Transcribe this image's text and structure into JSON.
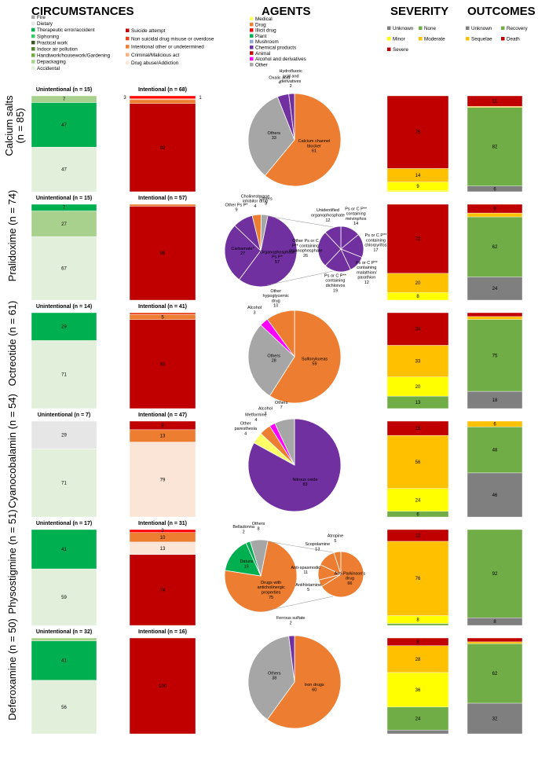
{
  "headers": {
    "circumstances": "CIRCUMSTANCES",
    "agents": "AGENTS",
    "severity": "SEVERITY",
    "outcomes": "OUTCOMES"
  },
  "colors": {
    "Fire": "#a6a6a6",
    "Dietary": "#e6e6e6",
    "Therapeutic error/accident": "#00b050",
    "Siphoning": "#33cc66",
    "Practical work": "#385723",
    "Indoor air pollution": "#548235",
    "Handiwork/housework/Gardening": "#70ad47",
    "Depackaging": "#a9d18e",
    "Accidental": "#e2efda",
    "Suicide attempt": "#c00000",
    "Non suicidal drug misuse or overdose": "#e8401c",
    "Intentional other or undetermined": "#ed7d31",
    "Criminal/Malicious act": "#f4b183",
    "Drug abuse/Addiction": "#fbe5d6",
    "Medical": "#ffff66",
    "Drug": "#ed7d31",
    "Illicit drug": "#ff0000",
    "Plant": "#00b050",
    "Mushroom": "#8faadc",
    "Chemical products": "#7030a0",
    "Animal": "#c00000",
    "Alcohol and derivatives": "#ff00ff",
    "Other": "#a6a6a6",
    "Unknown": "#7f7f7f",
    "None": "#70ad47",
    "Minor": "#ffff00",
    "Moderate": "#ffc000",
    "Severe": "#c00000",
    "Recovery": "#70ad47",
    "Sequelae": "#ffc000",
    "Death": "#c00000"
  },
  "legends": {
    "circumstances_left": [
      "Fire",
      "Dietary",
      "Therapeutic error/accident",
      "Siphoning",
      "Practical work",
      "Indoor air pollution",
      "Handiwork/housework/Gardening",
      "Depackaging",
      "Accidental"
    ],
    "circumstances_right": [
      "Suicide attempt",
      "Non suicidal drug misuse or overdose",
      "Intentional other or undetermined",
      "Criminal/Malicious act",
      "Drug abuse/Addiction"
    ],
    "agents": [
      "Medical",
      "Drug",
      "Illicit drug",
      "Plant",
      "Mushroom",
      "Chemical products",
      "Animal",
      "Alcohol and derivatives",
      "Other"
    ],
    "severity": [
      "Unknown",
      "None",
      "Minor",
      "Moderate",
      "Severe"
    ],
    "outcomes": [
      "Unknown",
      "Recovery",
      "Sequelae",
      "Death"
    ]
  },
  "chart_data": [
    {
      "type": "bar",
      "row": "Calcium salts\n(n = 85)",
      "unintentional": {
        "label": "Unintentional (n = 15)",
        "series": [
          {
            "name": "Accidental",
            "value": 47
          },
          {
            "name": "Therapeutic error/accident",
            "value": 47
          },
          {
            "name": "Depackaging",
            "value": 7
          }
        ]
      },
      "intentional": {
        "label": "Intentional (n = 68)",
        "series": [
          {
            "name": "Suicide attempt",
            "value": 92
          },
          {
            "name": "Intentional other or undetermined",
            "value": 4
          },
          {
            "name": "Criminal/Malicious act",
            "value": 1
          },
          {
            "name": "Illicit drug",
            "value": 3
          }
        ],
        "edge_labels": [
          {
            "text": "3",
            "side": "left"
          },
          {
            "text": "1",
            "side": "right"
          }
        ]
      },
      "agents": {
        "type": "pie",
        "slices": [
          {
            "name": "Calcium channel blocker",
            "value": 61,
            "color": "Drug"
          },
          {
            "name": "Others",
            "value": 33,
            "color": "Other"
          },
          {
            "name": "Oxalic acid",
            "value": 4,
            "color": "Chemical products"
          },
          {
            "name": "Hydrofluoric acid and derivatives",
            "value": 2,
            "color": "Chemical products"
          }
        ]
      },
      "severity": [
        {
          "name": "Minor",
          "value": 1,
          "label": "1"
        },
        {
          "name": "Minor",
          "value": 9,
          "label": "9"
        },
        {
          "name": "Moderate",
          "value": 14,
          "label": "14"
        },
        {
          "name": "Severe",
          "value": 75,
          "label": "75"
        }
      ],
      "outcomes": [
        {
          "name": "Unknown",
          "value": 6,
          "label": "6"
        },
        {
          "name": "Recovery",
          "value": 82,
          "label": "82"
        },
        {
          "name": "Sequelae",
          "value": 1,
          "label": "1"
        },
        {
          "name": "Death",
          "value": 11,
          "label": "11"
        }
      ]
    },
    {
      "type": "bar",
      "row": "Pralidoxime (n = 74)",
      "unintentional": {
        "label": "Unintentional (n = 15)",
        "series": [
          {
            "name": "Accidental",
            "value": 67
          },
          {
            "name": "Depackaging",
            "value": 27
          },
          {
            "name": "Therapeutic error/accident",
            "value": 7
          }
        ]
      },
      "intentional": {
        "label": "Intentional (n = 57)",
        "series": [
          {
            "name": "Suicide attempt",
            "value": 98
          },
          {
            "name": "Intentional other or undetermined",
            "value": 2
          }
        ]
      },
      "agents": {
        "type": "pie",
        "slices": [
          {
            "name": "Organophosphate Ps P*",
            "value": 57,
            "color": "Chemical products"
          },
          {
            "name": "Carbamate*",
            "value": 27,
            "color": "Chemical products"
          },
          {
            "name": "Other Ps P*",
            "value": 9,
            "color": "Chemical products"
          },
          {
            "name": "Cholinesterase inhibitor drug",
            "value": 4,
            "color": "Drug"
          },
          {
            "name": "Others",
            "value": 3,
            "color": "Other"
          }
        ],
        "subpie": [
          {
            "name": "Ps or C P** containing mévinphos",
            "value": 14
          },
          {
            "name": "Ps or C P** containing chlorpyrifos",
            "value": 17
          },
          {
            "name": "Ps or C P** containing malathion/ parathion",
            "value": 12
          },
          {
            "name": "Ps or C P** containing dichlorvos",
            "value": 19
          },
          {
            "name": "Other Ps or C P** containing organophosphate",
            "value": 26
          },
          {
            "name": "Unidentified organophosphate",
            "value": 12
          }
        ]
      },
      "severity": [
        {
          "name": "Minor",
          "value": 8,
          "label": "8"
        },
        {
          "name": "Moderate",
          "value": 20,
          "label": "20"
        },
        {
          "name": "Severe",
          "value": 72,
          "label": "72"
        }
      ],
      "outcomes": [
        {
          "name": "Unknown",
          "value": 24,
          "label": "24"
        },
        {
          "name": "Recovery",
          "value": 62,
          "label": "62"
        },
        {
          "name": "Sequelae",
          "value": 4,
          "label": "4"
        },
        {
          "name": "Death",
          "value": 9,
          "label": "9"
        }
      ]
    },
    {
      "type": "bar",
      "row": "Octreotide (n = 61)",
      "unintentional": {
        "label": "Unintentional (n = 14)",
        "series": [
          {
            "name": "Accidental",
            "value": 71
          },
          {
            "name": "Therapeutic error/accident",
            "value": 29
          }
        ]
      },
      "intentional": {
        "label": "Intentional (n = 41)",
        "series": [
          {
            "name": "Suicide attempt",
            "value": 93
          },
          {
            "name": "Intentional other or undetermined",
            "value": 5
          },
          {
            "name": "Non suicidal drug misuse or overdose",
            "value": 2
          }
        ]
      },
      "agents": {
        "type": "pie",
        "slices": [
          {
            "name": "Sulfonylureas",
            "value": 59,
            "color": "Drug"
          },
          {
            "name": "Others",
            "value": 28,
            "color": "Other"
          },
          {
            "name": "Alcohol",
            "value": 3,
            "color": "Alcohol and derivatives"
          },
          {
            "name": "Other hypoglycemic drug",
            "value": 10,
            "color": "Drug"
          }
        ]
      },
      "severity": [
        {
          "name": "None",
          "value": 13,
          "label": "13"
        },
        {
          "name": "Minor",
          "value": 20,
          "label": "20"
        },
        {
          "name": "Moderate",
          "value": 33,
          "label": "33"
        },
        {
          "name": "Severe",
          "value": 34,
          "label": "34"
        }
      ],
      "outcomes": [
        {
          "name": "Unknown",
          "value": 18,
          "label": "18"
        },
        {
          "name": "Recovery",
          "value": 75,
          "label": "75"
        },
        {
          "name": "Sequelae",
          "value": 3,
          "label": "3"
        },
        {
          "name": "Death",
          "value": 4,
          "label": "4"
        }
      ]
    },
    {
      "type": "bar",
      "row": "Cyanocobalamin (n = 54)",
      "unintentional": {
        "label": "Unintentional (n = 7)",
        "series": [
          {
            "name": "Accidental",
            "value": 71
          },
          {
            "name": "Dietary",
            "value": 29
          }
        ]
      },
      "intentional": {
        "label": "Intentional (n = 47)",
        "series": [
          {
            "name": "Drug abuse/Addiction",
            "value": 79
          },
          {
            "name": "Intentional other or undetermined",
            "value": 13
          },
          {
            "name": "Suicide attempt",
            "value": 9
          }
        ]
      },
      "agents": {
        "type": "pie",
        "slices": [
          {
            "name": "Nitrous oxide",
            "value": 83,
            "color": "Chemical products"
          },
          {
            "name": "Other paresthesia",
            "value": 4,
            "color": "Medical"
          },
          {
            "name": "Metformine",
            "value": 4,
            "color": "Drug"
          },
          {
            "name": "Alcohol",
            "value": 2,
            "color": "Alcohol and derivatives"
          },
          {
            "name": "Others",
            "value": 7,
            "color": "Other"
          }
        ]
      },
      "severity": [
        {
          "name": "None",
          "value": 6,
          "label": "6"
        },
        {
          "name": "Minor",
          "value": 24,
          "label": "24"
        },
        {
          "name": "Moderate",
          "value": 56,
          "label": "56"
        },
        {
          "name": "Severe",
          "value": 15,
          "label": "15"
        }
      ],
      "outcomes": [
        {
          "name": "Unknown",
          "value": 46,
          "label": "46"
        },
        {
          "name": "Recovery",
          "value": 48,
          "label": "48"
        },
        {
          "name": "Sequelae",
          "value": 6,
          "label": "6"
        }
      ]
    },
    {
      "type": "bar",
      "row": "Physostigmine (n = 51)",
      "unintentional": {
        "label": "Unintentional (n = 17)",
        "series": [
          {
            "name": "Accidental",
            "value": 59
          },
          {
            "name": "Therapeutic error/accident",
            "value": 41
          }
        ]
      },
      "intentional": {
        "label": "Intentional (n = 31)",
        "series": [
          {
            "name": "Suicide attempt",
            "value": 74
          },
          {
            "name": "Drug abuse/Addiction",
            "value": 13
          },
          {
            "name": "Intentional other or undetermined",
            "value": 10
          },
          {
            "name": "Illicit drug",
            "value": 3
          }
        ],
        "edge_labels": [
          {
            "text": "3",
            "side": "top"
          }
        ]
      },
      "agents": {
        "type": "pie",
        "slices": [
          {
            "name": "Drugs with anticholinergic properties",
            "value": 75,
            "color": "Drug"
          },
          {
            "name": "Datura",
            "value": 16,
            "color": "Plant"
          },
          {
            "name": "Belladonna",
            "value": 2,
            "color": "Plant"
          },
          {
            "name": "Others",
            "value": 8,
            "color": "Other"
          }
        ],
        "subpie": [
          {
            "name": "Anti-Parkinson's drug",
            "value": 66
          },
          {
            "name": "Antihistamine",
            "value": 5
          },
          {
            "name": "Anti-spasmodic",
            "value": 11
          },
          {
            "name": "Scopolamine",
            "value": 13
          },
          {
            "name": "Atropine",
            "value": 5
          }
        ]
      },
      "severity": [
        {
          "name": "None",
          "value": 2,
          "label": "2"
        },
        {
          "name": "Minor",
          "value": 8,
          "label": "8"
        },
        {
          "name": "Moderate",
          "value": 76,
          "label": "76"
        },
        {
          "name": "Severe",
          "value": 12,
          "label": "12"
        }
      ],
      "outcomes": [
        {
          "name": "Unknown",
          "value": 8,
          "label": "8"
        },
        {
          "name": "Recovery",
          "value": 92,
          "label": "92"
        }
      ]
    },
    {
      "type": "bar",
      "row": "Deferoxamine (n = 50)",
      "unintentional": {
        "label": "Unintentional (n = 32)",
        "series": [
          {
            "name": "Accidental",
            "value": 56
          },
          {
            "name": "Therapeutic error/accident",
            "value": 41
          },
          {
            "name": "Depackaging",
            "value": 3
          }
        ]
      },
      "intentional": {
        "label": "Intentional (n = 16)",
        "series": [
          {
            "name": "Suicide attempt",
            "value": 100
          }
        ]
      },
      "agents": {
        "type": "pie",
        "slices": [
          {
            "name": "Iron drugs",
            "value": 60,
            "color": "Drug"
          },
          {
            "name": "Others",
            "value": 38,
            "color": "Other"
          },
          {
            "name": "Ferrous sulfate",
            "value": 2,
            "color": "Chemical products"
          }
        ]
      },
      "severity": [
        {
          "name": "Unknown",
          "value": 4,
          "label": "4"
        },
        {
          "name": "None",
          "value": 24,
          "label": "24"
        },
        {
          "name": "Minor",
          "value": 36,
          "label": "36"
        },
        {
          "name": "Moderate",
          "value": 28,
          "label": "28"
        },
        {
          "name": "Severe",
          "value": 8,
          "label": "8"
        }
      ],
      "outcomes": [
        {
          "name": "Unknown",
          "value": 32,
          "label": "32"
        },
        {
          "name": "Recovery",
          "value": 62,
          "label": "62"
        },
        {
          "name": "Sequelae",
          "value": 2,
          "label": "2"
        },
        {
          "name": "Death",
          "value": 4,
          "label": "4"
        }
      ]
    }
  ]
}
